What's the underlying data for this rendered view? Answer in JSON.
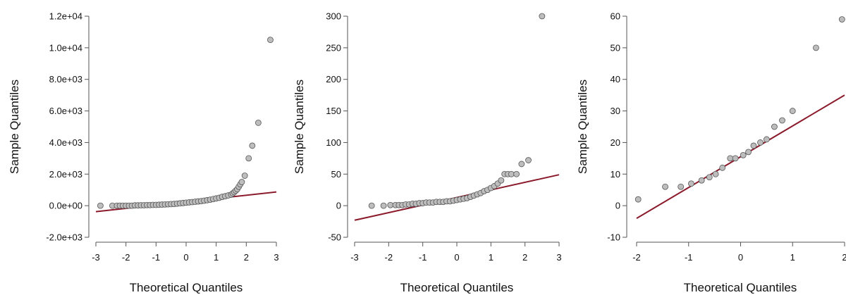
{
  "chart_data": [
    {
      "type": "scatter",
      "xlabel": "Theoretical Quantiles",
      "ylabel": "Sample Quantiles",
      "xlim": [
        -3,
        3
      ],
      "ylim": [
        -2000,
        12000
      ],
      "xticks": [
        -3,
        -2,
        -1,
        0,
        1,
        2,
        3
      ],
      "xtick_labels": [
        "-3",
        "-2",
        "-1",
        "0",
        "1",
        "2",
        "3"
      ],
      "yticks": [
        -2000,
        0,
        2000,
        4000,
        6000,
        8000,
        10000,
        12000
      ],
      "ytick_labels": [
        "-2.0e+03",
        "0.0e+00",
        "2.0e+03",
        "4.0e+03",
        "6.0e+03",
        "8.0e+03",
        "1.0e+04",
        "1.2e+04"
      ],
      "reference_line": {
        "x1": -3,
        "y1": -380,
        "x2": 3,
        "y2": 870,
        "color": "#8b1a2b"
      },
      "points": [
        [
          -2.85,
          0
        ],
        [
          -2.45,
          0
        ],
        [
          -2.3,
          0
        ],
        [
          -2.2,
          0
        ],
        [
          -2.1,
          0
        ],
        [
          -2.0,
          0
        ],
        [
          -1.9,
          0
        ],
        [
          -1.8,
          0
        ],
        [
          -1.7,
          20
        ],
        [
          -1.6,
          20
        ],
        [
          -1.5,
          30
        ],
        [
          -1.4,
          30
        ],
        [
          -1.3,
          40
        ],
        [
          -1.2,
          40
        ],
        [
          -1.1,
          50
        ],
        [
          -1.0,
          50
        ],
        [
          -0.9,
          60
        ],
        [
          -0.8,
          70
        ],
        [
          -0.7,
          80
        ],
        [
          -0.6,
          90
        ],
        [
          -0.5,
          100
        ],
        [
          -0.4,
          110
        ],
        [
          -0.3,
          130
        ],
        [
          -0.2,
          150
        ],
        [
          -0.1,
          170
        ],
        [
          0.0,
          190
        ],
        [
          0.1,
          210
        ],
        [
          0.2,
          230
        ],
        [
          0.3,
          250
        ],
        [
          0.4,
          270
        ],
        [
          0.5,
          290
        ],
        [
          0.6,
          320
        ],
        [
          0.7,
          350
        ],
        [
          0.8,
          380
        ],
        [
          0.9,
          420
        ],
        [
          1.0,
          460
        ],
        [
          1.1,
          500
        ],
        [
          1.2,
          560
        ],
        [
          1.3,
          600
        ],
        [
          1.4,
          650
        ],
        [
          1.5,
          700
        ],
        [
          1.55,
          780
        ],
        [
          1.6,
          860
        ],
        [
          1.65,
          950
        ],
        [
          1.7,
          1050
        ],
        [
          1.75,
          1200
        ],
        [
          1.8,
          1350
        ],
        [
          1.85,
          1500
        ],
        [
          1.95,
          1900
        ],
        [
          2.08,
          3000
        ],
        [
          2.2,
          3800
        ],
        [
          2.4,
          5250
        ],
        [
          2.8,
          10500
        ]
      ]
    },
    {
      "type": "scatter",
      "xlabel": "Theoretical Quantiles",
      "ylabel": "Sample Quantiles",
      "xlim": [
        -3,
        3
      ],
      "ylim": [
        -50,
        300
      ],
      "xticks": [
        -3,
        -2,
        -1,
        0,
        1,
        2,
        3
      ],
      "xtick_labels": [
        "-3",
        "-2",
        "-1",
        "0",
        "1",
        "2",
        "3"
      ],
      "yticks": [
        -50,
        0,
        50,
        100,
        150,
        200,
        250,
        300
      ],
      "ytick_labels": [
        "-50",
        "0",
        "50",
        "100",
        "150",
        "200",
        "250",
        "300"
      ],
      "reference_line": {
        "x1": -3,
        "y1": -23,
        "x2": 3,
        "y2": 49,
        "color": "#8b1a2b"
      },
      "points": [
        [
          -2.5,
          0
        ],
        [
          -2.15,
          0
        ],
        [
          -1.95,
          1
        ],
        [
          -1.8,
          1
        ],
        [
          -1.7,
          1
        ],
        [
          -1.6,
          1
        ],
        [
          -1.5,
          2
        ],
        [
          -1.4,
          2
        ],
        [
          -1.3,
          3
        ],
        [
          -1.2,
          3
        ],
        [
          -1.1,
          4
        ],
        [
          -1.0,
          4
        ],
        [
          -0.9,
          5
        ],
        [
          -0.8,
          5
        ],
        [
          -0.7,
          5
        ],
        [
          -0.6,
          6
        ],
        [
          -0.5,
          6
        ],
        [
          -0.4,
          6
        ],
        [
          -0.3,
          7
        ],
        [
          -0.2,
          7
        ],
        [
          -0.1,
          8
        ],
        [
          0.0,
          9
        ],
        [
          0.1,
          10
        ],
        [
          0.2,
          11
        ],
        [
          0.3,
          12
        ],
        [
          0.4,
          14
        ],
        [
          0.5,
          16
        ],
        [
          0.6,
          18
        ],
        [
          0.7,
          20
        ],
        [
          0.8,
          23
        ],
        [
          0.9,
          25
        ],
        [
          1.0,
          28
        ],
        [
          1.1,
          31
        ],
        [
          1.2,
          35
        ],
        [
          1.3,
          40
        ],
        [
          1.4,
          50
        ],
        [
          1.5,
          50
        ],
        [
          1.6,
          50
        ],
        [
          1.75,
          50
        ],
        [
          1.9,
          66
        ],
        [
          2.1,
          72
        ],
        [
          2.5,
          300
        ]
      ]
    },
    {
      "type": "scatter",
      "xlabel": "Theoretical Quantiles",
      "ylabel": "Sample Quantiles",
      "xlim": [
        -2,
        2
      ],
      "ylim": [
        -10,
        60
      ],
      "xticks": [
        -2,
        -1,
        0,
        1,
        2
      ],
      "xtick_labels": [
        "-2",
        "-1",
        "0",
        "1",
        "2"
      ],
      "yticks": [
        -10,
        0,
        10,
        20,
        30,
        40,
        50,
        60
      ],
      "ytick_labels": [
        "-10",
        "0",
        "10",
        "20",
        "30",
        "40",
        "50",
        "60"
      ],
      "reference_line": {
        "x1": -2,
        "y1": -4,
        "x2": 2,
        "y2": 35,
        "color": "#8b1a2b"
      },
      "points": [
        [
          -1.97,
          2
        ],
        [
          -1.45,
          6
        ],
        [
          -1.15,
          6
        ],
        [
          -0.95,
          7
        ],
        [
          -0.75,
          8
        ],
        [
          -0.6,
          9
        ],
        [
          -0.48,
          10
        ],
        [
          -0.35,
          12
        ],
        [
          -0.2,
          15
        ],
        [
          -0.1,
          15
        ],
        [
          0.05,
          16
        ],
        [
          0.15,
          17
        ],
        [
          0.25,
          19
        ],
        [
          0.38,
          20
        ],
        [
          0.5,
          21
        ],
        [
          0.65,
          25
        ],
        [
          0.8,
          27
        ],
        [
          1.0,
          30
        ],
        [
          1.45,
          50
        ],
        [
          1.95,
          59
        ]
      ]
    }
  ]
}
